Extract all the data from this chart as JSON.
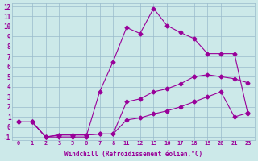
{
  "xlabel": "Windchill (Refroidissement éolien,°C)",
  "xlim": [
    -0.5,
    17.5
  ],
  "ylim": [
    -1.3,
    12.3
  ],
  "xtick_positions": [
    0,
    1,
    2,
    3,
    4,
    5,
    6,
    7,
    8,
    9,
    10,
    11,
    12,
    13,
    14,
    15,
    16,
    17
  ],
  "xtick_labels": [
    "0",
    "1",
    "2",
    "3",
    "5",
    "6",
    "7",
    "8",
    "11",
    "12",
    "15",
    "16",
    "17",
    "18",
    "19",
    "20",
    "21",
    "23"
  ],
  "yticks": [
    -1,
    0,
    1,
    2,
    3,
    4,
    5,
    6,
    7,
    8,
    9,
    10,
    11,
    12
  ],
  "background_color": "#cce9e9",
  "grid_color": "#99bbcc",
  "line_color": "#990099",
  "line1_x": [
    0,
    1,
    2,
    3,
    4,
    5,
    6,
    7,
    8,
    9,
    10,
    11,
    12,
    13,
    14,
    15,
    16,
    17
  ],
  "line1_y": [
    0.5,
    0.5,
    -1,
    -1,
    -1,
    -1,
    3.5,
    6.5,
    9.9,
    9.3,
    11.8,
    10.1,
    9.4,
    8.8,
    7.3,
    7.3,
    7.3,
    1.3
  ],
  "line2_x": [
    0,
    1,
    2,
    3,
    4,
    5,
    6,
    7,
    8,
    9,
    10,
    11,
    12,
    13,
    14,
    15,
    16,
    17
  ],
  "line2_y": [
    0.5,
    0.5,
    -1,
    -0.8,
    -0.8,
    -0.8,
    -0.7,
    -0.7,
    2.5,
    2.8,
    3.5,
    3.8,
    4.3,
    5.0,
    5.2,
    5.0,
    4.8,
    4.4
  ],
  "line3_x": [
    0,
    1,
    2,
    3,
    4,
    5,
    6,
    7,
    8,
    9,
    10,
    11,
    12,
    13,
    14,
    15,
    16,
    17
  ],
  "line3_y": [
    0.5,
    0.5,
    -1,
    -0.8,
    -0.8,
    -0.8,
    -0.7,
    -0.7,
    0.7,
    0.9,
    1.3,
    1.6,
    2.0,
    2.5,
    3.0,
    3.5,
    1.0,
    1.4
  ]
}
